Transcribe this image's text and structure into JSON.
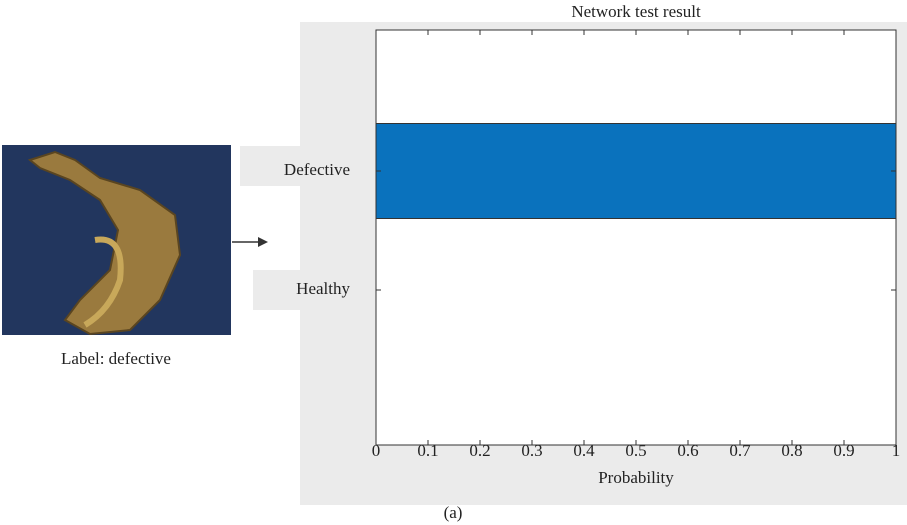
{
  "chart_data": {
    "type": "barh",
    "title": "Network test result",
    "xlabel": "Probability",
    "categories": [
      "Defective",
      "Healthy"
    ],
    "values": [
      1,
      0
    ],
    "color": "#0a72bd",
    "xlim": [
      0,
      1
    ],
    "xticks": [
      0,
      0.1,
      0.2,
      0.3,
      0.4,
      0.5,
      0.6,
      0.7,
      0.8,
      0.9,
      1
    ]
  },
  "image_caption": "Label: defective",
  "panel_label": "(a)"
}
